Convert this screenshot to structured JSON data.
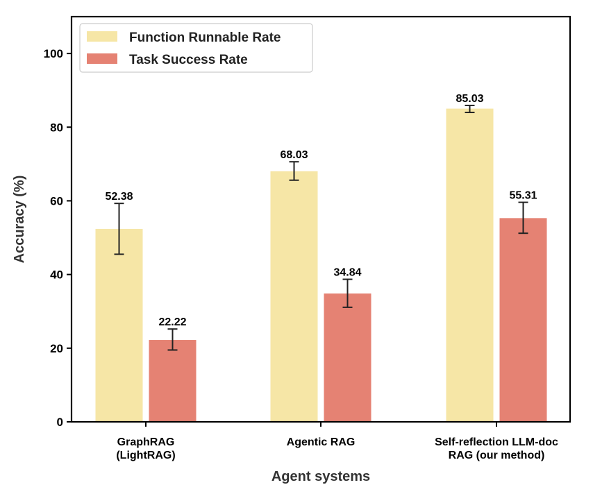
{
  "chart_data": {
    "type": "bar",
    "title": "",
    "xlabel": "Agent systems",
    "ylabel": "Accuracy (%)",
    "ylim": [
      0,
      110
    ],
    "yticks": [
      0,
      20,
      40,
      60,
      80,
      100
    ],
    "grid": false,
    "legend_position": "top-left",
    "categories": [
      [
        "GraphRAG",
        "(LightRAG)"
      ],
      [
        "Agentic RAG"
      ],
      [
        "Self-reflection LLM-doc",
        "RAG (our method)"
      ]
    ],
    "series": [
      {
        "name": "Function Runnable Rate",
        "color": "#f6e6a6",
        "values": [
          52.38,
          68.03,
          85.03
        ],
        "labels": [
          "52.38",
          "68.03",
          "85.03"
        ],
        "error_low": [
          45.5,
          65.6,
          84.0
        ],
        "error_high": [
          59.3,
          70.6,
          85.9
        ]
      },
      {
        "name": "Task Success Rate",
        "color": "#e58273",
        "values": [
          22.22,
          34.84,
          55.31
        ],
        "labels": [
          "22.22",
          "34.84",
          "55.31"
        ],
        "error_low": [
          19.5,
          31.1,
          51.2
        ],
        "error_high": [
          25.2,
          38.7,
          59.6
        ]
      }
    ]
  }
}
